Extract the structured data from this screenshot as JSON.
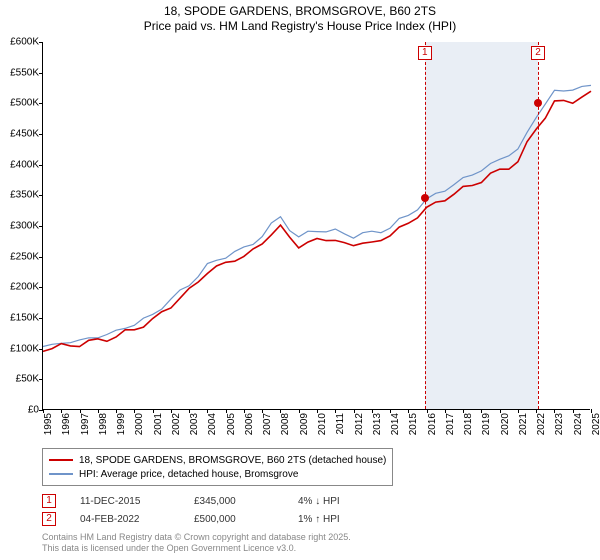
{
  "title": {
    "line1": "18, SPODE GARDENS, BROMSGROVE, B60 2TS",
    "line2": "Price paid vs. HM Land Registry's House Price Index (HPI)"
  },
  "chart": {
    "type": "line",
    "background_color": "#ffffff",
    "ylim": [
      0,
      600000
    ],
    "ytick_step": 50000,
    "y_prefix": "£",
    "y_suffix": "K",
    "x_categories": [
      "1995",
      "1996",
      "1997",
      "1998",
      "1999",
      "2000",
      "2001",
      "2002",
      "2003",
      "2004",
      "2005",
      "2006",
      "2007",
      "2008",
      "2009",
      "2010",
      "2011",
      "2012",
      "2013",
      "2014",
      "2015",
      "2016",
      "2017",
      "2018",
      "2019",
      "2020",
      "2021",
      "2022",
      "2023",
      "2024",
      "2025"
    ],
    "grid_color": "#e0e0e0",
    "series": [
      {
        "name": "18, SPODE GARDENS, BROMSGROVE, B60 2TS (detached house)",
        "color": "#cc0000",
        "stroke_width": 1.6,
        "values": [
          100,
          103,
          108,
          113,
          120,
          132,
          146,
          170,
          195,
          225,
          240,
          250,
          272,
          300,
          265,
          280,
          275,
          270,
          272,
          285,
          305,
          328,
          345,
          360,
          375,
          390,
          405,
          460,
          500,
          505,
          515
        ]
      },
      {
        "name": "HPI: Average price, detached house, Bromsgrove",
        "color": "#6f94c9",
        "stroke_width": 1.2,
        "values": [
          105,
          108,
          114,
          119,
          128,
          140,
          155,
          180,
          205,
          235,
          252,
          262,
          285,
          315,
          280,
          295,
          290,
          285,
          288,
          298,
          318,
          342,
          360,
          376,
          392,
          408,
          425,
          478,
          520,
          522,
          530
        ]
      }
    ],
    "shaded_region": {
      "from_index": 20.9,
      "to_index": 27.1
    },
    "markers": [
      {
        "num": "1",
        "x_index": 20.9,
        "y_value": 345000,
        "color": "#cc0000"
      },
      {
        "num": "2",
        "x_index": 27.1,
        "y_value": 500000,
        "color": "#cc0000"
      }
    ]
  },
  "legend": {
    "items": [
      {
        "label": "18, SPODE GARDENS, BROMSGROVE, B60 2TS (detached house)",
        "color": "#cc0000"
      },
      {
        "label": "HPI: Average price, detached house, Bromsgrove",
        "color": "#6f94c9"
      }
    ]
  },
  "events": {
    "marker_color": "#cc0000",
    "rows": [
      {
        "num": "1",
        "date": "11-DEC-2015",
        "price": "£345,000",
        "delta": "4% ↓ HPI"
      },
      {
        "num": "2",
        "date": "04-FEB-2022",
        "price": "£500,000",
        "delta": "1% ↑ HPI"
      }
    ]
  },
  "footer": {
    "line1": "Contains HM Land Registry data © Crown copyright and database right 2025.",
    "line2": "This data is licensed under the Open Government Licence v3.0."
  }
}
